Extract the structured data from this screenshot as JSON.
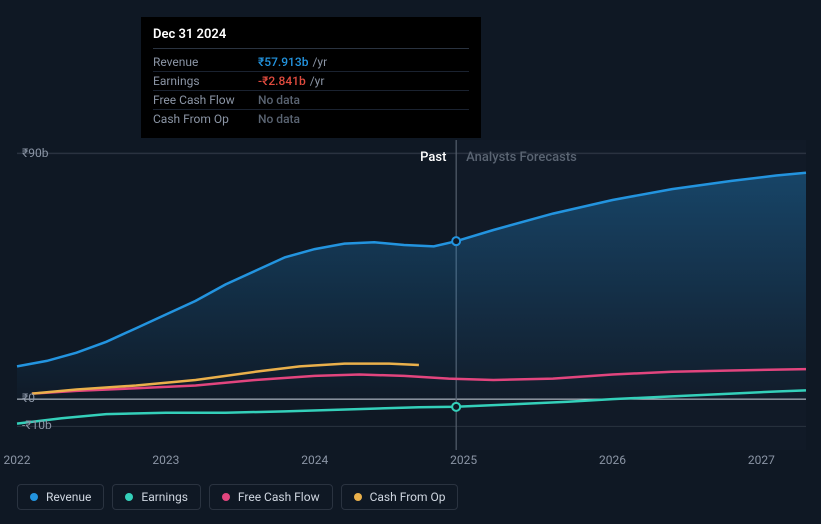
{
  "tooltip": {
    "date": "Dec 31 2024",
    "rows": [
      {
        "label": "Revenue",
        "value": "₹57.913b",
        "unit": "/yr",
        "cls": "value-revenue"
      },
      {
        "label": "Earnings",
        "value": "-₹2.841b",
        "unit": "/yr",
        "cls": "value-earnings"
      },
      {
        "label": "Free Cash Flow",
        "value": "No data",
        "unit": "",
        "cls": "value-nodata"
      },
      {
        "label": "Cash From Op",
        "value": "No data",
        "unit": "",
        "cls": "value-nodata"
      }
    ]
  },
  "chart": {
    "type": "line",
    "background_color": "#0f1824",
    "grid_color": "#2a3340",
    "zero_line_color": "#cfd6e0",
    "x_range": [
      2022,
      2027.3
    ],
    "y_range": [
      -15,
      95
    ],
    "y_ticks": [
      {
        "v": 90,
        "label": "₹90b"
      },
      {
        "v": 0,
        "label": "₹0"
      },
      {
        "v": -10,
        "label": "-₹10b"
      }
    ],
    "x_ticks": [
      2022,
      2023,
      2024,
      2025,
      2026,
      2027
    ],
    "split_x": 2024.95,
    "regions": {
      "past": "Past",
      "forecast": "Analysts Forecasts"
    },
    "hover_x": 2024.95,
    "series": [
      {
        "name": "Revenue",
        "color": "#2394df",
        "fill": true,
        "fill_opacity": 0.18,
        "points": [
          [
            2022.0,
            12
          ],
          [
            2022.2,
            14
          ],
          [
            2022.4,
            17
          ],
          [
            2022.6,
            21
          ],
          [
            2022.8,
            26
          ],
          [
            2023.0,
            31
          ],
          [
            2023.2,
            36
          ],
          [
            2023.4,
            42
          ],
          [
            2023.6,
            47
          ],
          [
            2023.8,
            52
          ],
          [
            2024.0,
            55
          ],
          [
            2024.2,
            57
          ],
          [
            2024.4,
            57.5
          ],
          [
            2024.6,
            56.5
          ],
          [
            2024.8,
            56
          ],
          [
            2024.95,
            57.9
          ],
          [
            2025.2,
            62
          ],
          [
            2025.6,
            68
          ],
          [
            2026.0,
            73
          ],
          [
            2026.4,
            77
          ],
          [
            2026.8,
            80
          ],
          [
            2027.1,
            82
          ],
          [
            2027.3,
            83
          ]
        ],
        "marker_at": [
          2024.95,
          57.9
        ]
      },
      {
        "name": "Earnings",
        "color": "#34d0ba",
        "fill": false,
        "points": [
          [
            2022.0,
            -9
          ],
          [
            2022.3,
            -7
          ],
          [
            2022.6,
            -5.5
          ],
          [
            2023.0,
            -5
          ],
          [
            2023.4,
            -5
          ],
          [
            2023.8,
            -4.5
          ],
          [
            2024.1,
            -4
          ],
          [
            2024.4,
            -3.5
          ],
          [
            2024.7,
            -3
          ],
          [
            2024.95,
            -2.84
          ],
          [
            2025.3,
            -2
          ],
          [
            2025.7,
            -1
          ],
          [
            2026.0,
            0
          ],
          [
            2026.4,
            1
          ],
          [
            2026.8,
            2
          ],
          [
            2027.1,
            2.8
          ],
          [
            2027.3,
            3.2
          ]
        ],
        "marker_at": [
          2024.95,
          -2.84
        ]
      },
      {
        "name": "Free Cash Flow",
        "color": "#e2457e",
        "fill": false,
        "points": [
          [
            2022.1,
            2
          ],
          [
            2022.4,
            3
          ],
          [
            2022.8,
            4
          ],
          [
            2023.2,
            5
          ],
          [
            2023.6,
            7
          ],
          [
            2024.0,
            8.5
          ],
          [
            2024.3,
            9
          ],
          [
            2024.6,
            8.5
          ],
          [
            2024.9,
            7.5
          ],
          [
            2025.2,
            7
          ],
          [
            2025.6,
            7.5
          ],
          [
            2026.0,
            9
          ],
          [
            2026.4,
            10
          ],
          [
            2026.8,
            10.5
          ],
          [
            2027.1,
            10.8
          ],
          [
            2027.3,
            11
          ]
        ]
      },
      {
        "name": "Cash From Op",
        "color": "#eab04b",
        "fill": false,
        "points": [
          [
            2022.1,
            2
          ],
          [
            2022.4,
            3.5
          ],
          [
            2022.8,
            5
          ],
          [
            2023.2,
            7
          ],
          [
            2023.6,
            10
          ],
          [
            2023.9,
            12
          ],
          [
            2024.2,
            13
          ],
          [
            2024.5,
            13
          ],
          [
            2024.7,
            12.5
          ]
        ]
      }
    ],
    "legend": [
      {
        "label": "Revenue",
        "color": "#2394df"
      },
      {
        "label": "Earnings",
        "color": "#34d0ba"
      },
      {
        "label": "Free Cash Flow",
        "color": "#e2457e"
      },
      {
        "label": "Cash From Op",
        "color": "#eab04b"
      }
    ]
  }
}
